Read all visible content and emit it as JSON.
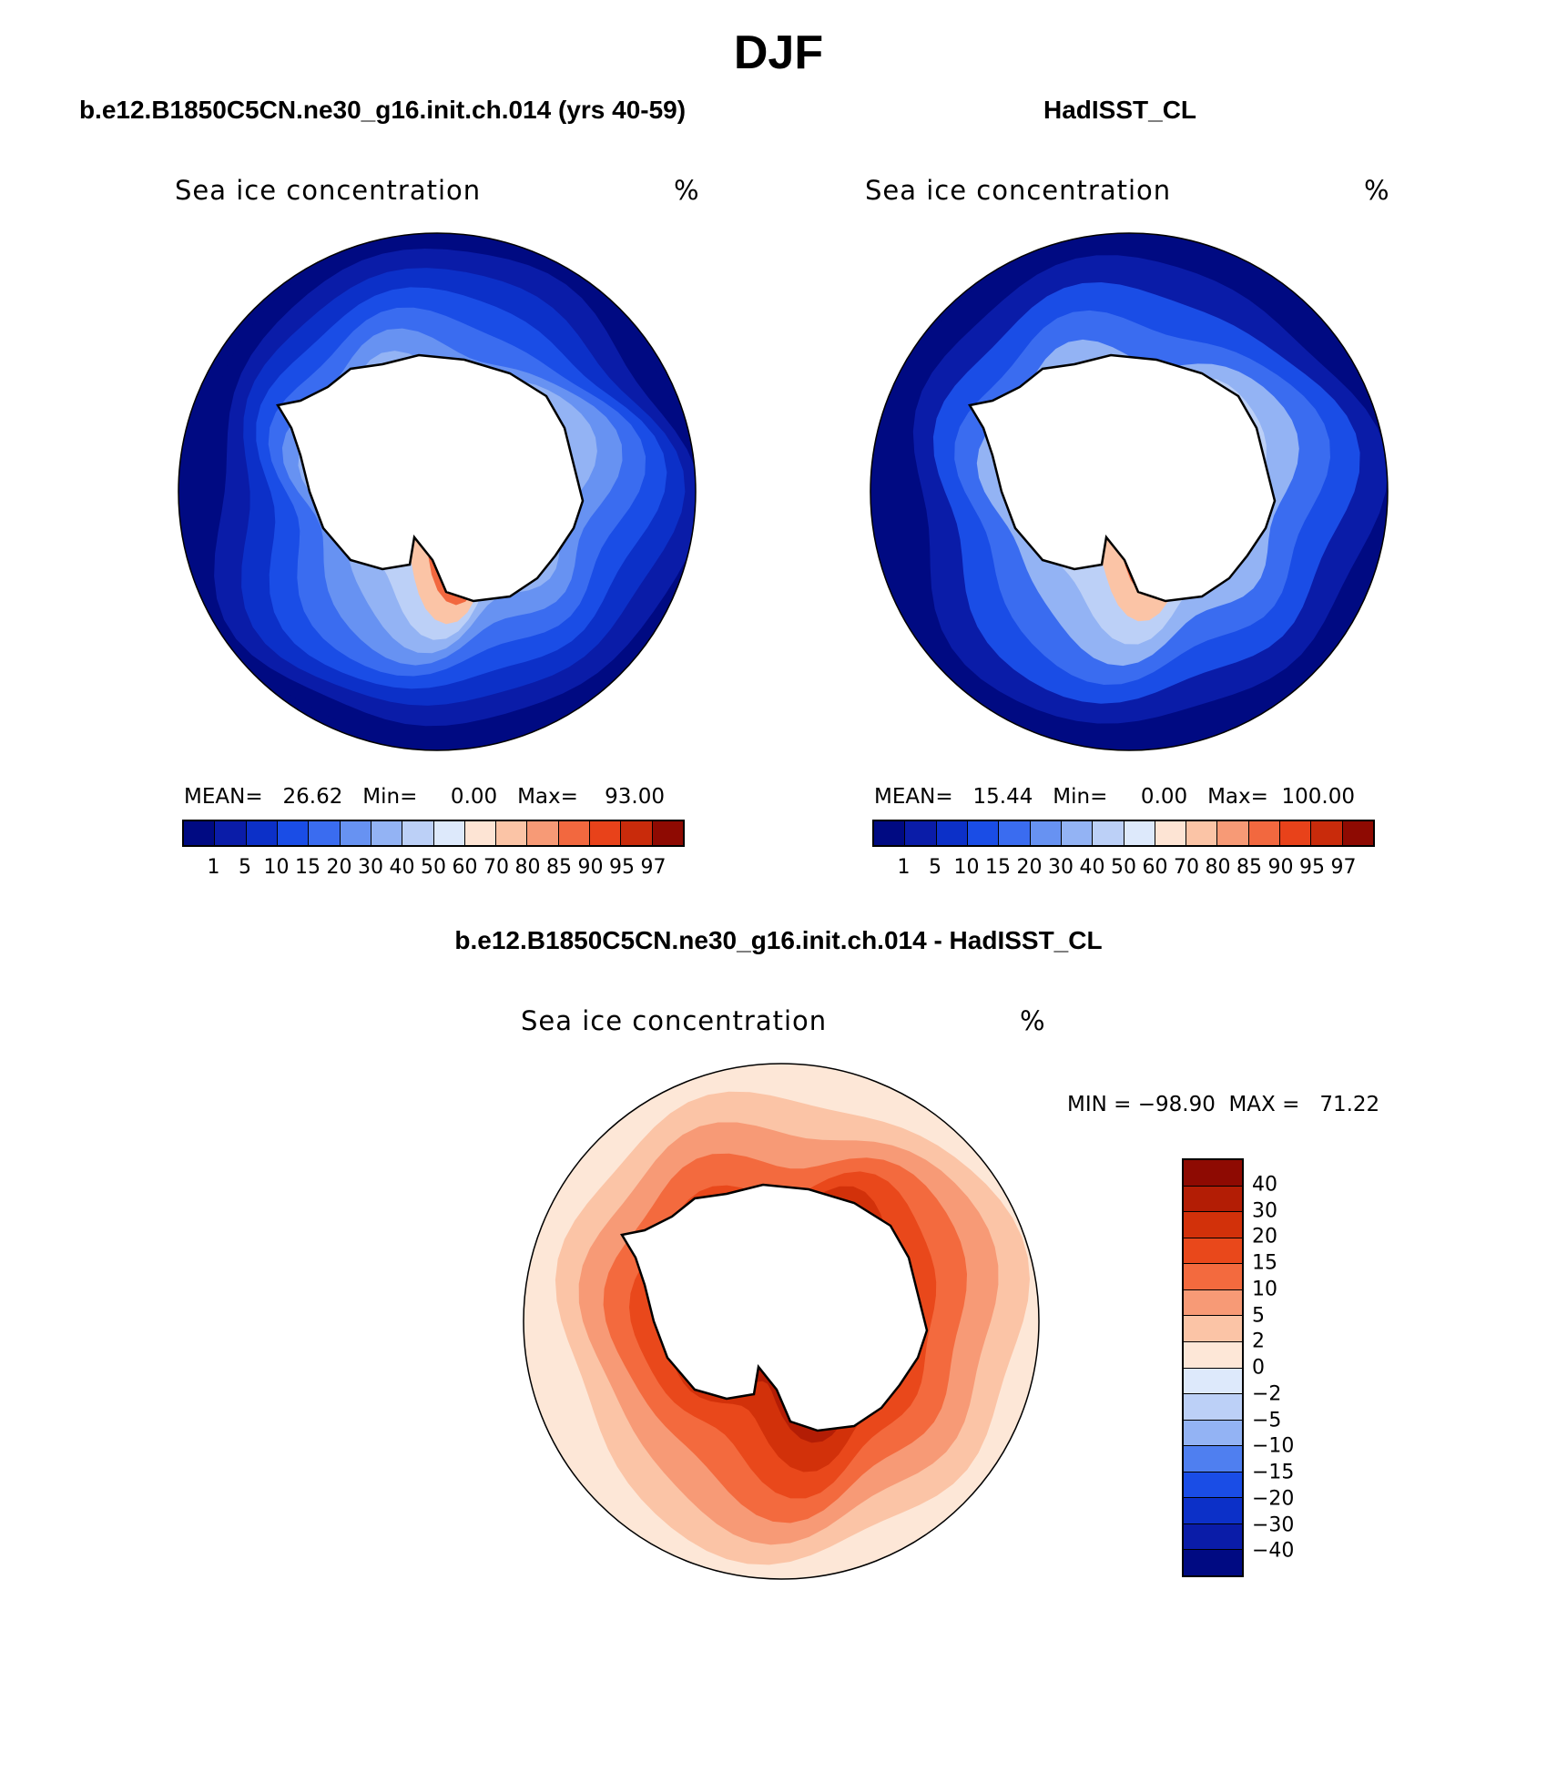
{
  "page_title": "DJF",
  "panels": {
    "model": {
      "title": "b.e12.B1850C5CN.ne30_g16.init.ch.014 (yrs 40-59)",
      "field": "Sea ice concentration",
      "units": "%",
      "stats": "MEAN=   26.62   Min=     0.00   Max=    93.00"
    },
    "obs": {
      "title": "HadISST_CL",
      "field": "Sea ice concentration",
      "units": "%",
      "stats": "MEAN=   15.44   Min=     0.00   Max=  100.00"
    },
    "diff": {
      "title": "b.e12.B1850C5CN.ne30_g16.init.ch.014 - HadISST_CL",
      "field": "Sea ice concentration",
      "units": "%",
      "stats": "MIN = −98.90  MAX =   71.22"
    }
  },
  "colorbar_main": {
    "labels": [
      "1",
      "5",
      "10",
      "15",
      "20",
      "30",
      "40",
      "50",
      "60",
      "70",
      "80",
      "85",
      "90",
      "95",
      "97"
    ],
    "colors": [
      "#000a82",
      "#0a1ca8",
      "#0c30c8",
      "#1a4de6",
      "#3a6cf0",
      "#6792f2",
      "#93b3f4",
      "#bcd0f7",
      "#dde9fb",
      "#fde4d4",
      "#fbc4a6",
      "#f79a76",
      "#f2683f",
      "#e8421a",
      "#c92b0b",
      "#8e0a02"
    ]
  },
  "colorbar_diff": {
    "labels": [
      "40",
      "30",
      "20",
      "15",
      "10",
      "5",
      "2",
      "0",
      "−2",
      "−5",
      "−10",
      "−15",
      "−20",
      "−30",
      "−40"
    ],
    "colors": [
      "#8e0a02",
      "#b31d05",
      "#d2310a",
      "#e9481b",
      "#f36a3e",
      "#f79a76",
      "#fbc4a6",
      "#fde7d7",
      "#dde9fb",
      "#bcd0f7",
      "#93b3f4",
      "#4f7ff0",
      "#1a4de6",
      "#0c30c8",
      "#0a1ca8",
      "#000a82"
    ]
  },
  "map_colors": {
    "model_ring": [
      "#000a82",
      "#0a1ca8",
      "#0c30c8",
      "#1a4de6",
      "#3a6cf0",
      "#6792f2",
      "#93b3f4",
      "#bcd0f7",
      "#fbc4a6",
      "#f2683f",
      "#e8421a"
    ],
    "obs_ring": [
      "#000a82",
      "#0a1ca8",
      "#1a4de6",
      "#3a6cf0",
      "#93b3f4",
      "#bcd0f7",
      "#fbc4a6",
      "#f2683f"
    ],
    "diff_ring": [
      "#fde7d7",
      "#fbc4a6",
      "#f79a76",
      "#f36a3e",
      "#e9481b",
      "#d2310a",
      "#b31d05",
      "#8e0a02"
    ]
  }
}
